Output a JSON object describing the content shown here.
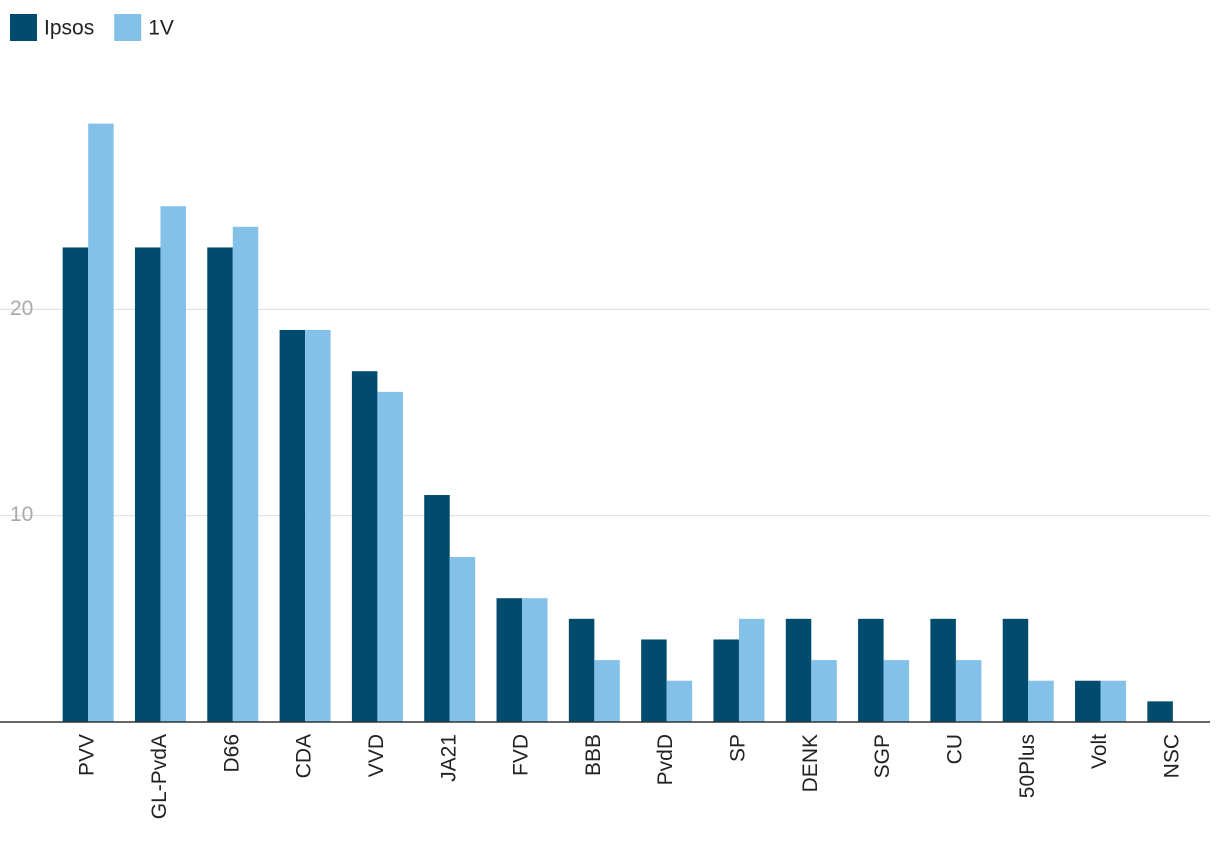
{
  "chart_data": {
    "type": "bar",
    "categories": [
      "PVV",
      "GL-PvdA",
      "D66",
      "CDA",
      "VVD",
      "JA21",
      "FVD",
      "BBB",
      "PvdD",
      "SP",
      "DENK",
      "SGP",
      "CU",
      "50Plus",
      "Volt",
      "NSC"
    ],
    "series": [
      {
        "name": "Ipsos",
        "color": "#004b6e",
        "values": [
          23,
          23,
          23,
          19,
          17,
          11,
          6,
          5,
          4,
          4,
          5,
          5,
          5,
          5,
          2,
          1
        ]
      },
      {
        "name": "1V",
        "color": "#84c1e8",
        "values": [
          29,
          25,
          24,
          19,
          16,
          8,
          6,
          3,
          2,
          5,
          3,
          3,
          3,
          2,
          2,
          0
        ]
      }
    ],
    "ylim": [
      0,
      30
    ],
    "yticks": [
      10,
      20
    ],
    "grid": true,
    "legend": "top-left"
  }
}
